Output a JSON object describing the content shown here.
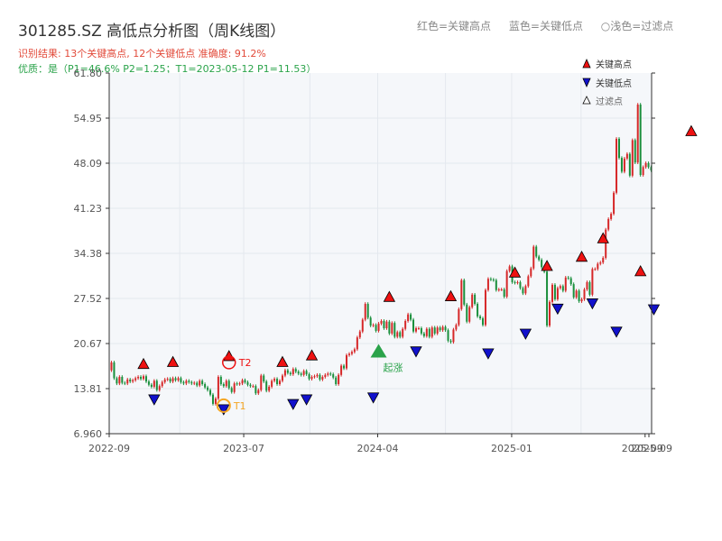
{
  "header": {
    "title": "301285.SZ 高低点分析图（周K线图）",
    "result_text": "识别结果: 13个关键高点, 12个关键低点  准确度: 91.2%",
    "quality_text": "优质：是（P1=46.6%  P2=1.25；T1=2023-05-12 P1=11.53）"
  },
  "top_legend": {
    "red": "红色=关键高点",
    "blue": "蓝色=关键低点",
    "hollow": "○浅色=过滤点"
  },
  "legend": {
    "high": "关键高点",
    "low": "关键低点",
    "filtered": "过滤点"
  },
  "colors": {
    "up": "#d62728",
    "down": "#1a8f3c",
    "high_marker": "#ee1111",
    "low_marker": "#1111cc",
    "t_circle": "#f5a623",
    "start_marker": "#2aa34a",
    "grid": "#e4e8ee",
    "plot_bg": "#f5f7fa"
  },
  "chart_data": {
    "type": "candlestick",
    "x_tick_labels": [
      "2022-09",
      "2023-07",
      "2024-04",
      "2025-01",
      "2025-09",
      "2025-09"
    ],
    "y_tick_labels": [
      "6.960",
      "13.81",
      "20.67",
      "27.52",
      "34.38",
      "41.23",
      "48.09",
      "54.95",
      "61.80"
    ],
    "ylim": [
      6.96,
      61.8
    ],
    "grid": true,
    "legend_position": "top-right",
    "closes": [
      17.8,
      15.4,
      14.6,
      15.6,
      14.7,
      14.6,
      15.2,
      14.9,
      15.1,
      15.4,
      15.6,
      15.3,
      15.7,
      14.9,
      14.4,
      14.1,
      15.0,
      13.6,
      14.2,
      14.8,
      15.2,
      15.3,
      14.9,
      15.4,
      15.1,
      15.4,
      14.8,
      14.6,
      15.0,
      14.8,
      14.6,
      14.7,
      14.3,
      15.0,
      14.5,
      14.0,
      13.6,
      12.9,
      11.5,
      12.3,
      15.6,
      14.5,
      14.2,
      15.0,
      13.9,
      13.3,
      14.6,
      14.5,
      14.6,
      15.1,
      14.8,
      14.4,
      14.2,
      14.2,
      13.1,
      13.6,
      15.8,
      14.9,
      13.5,
      14.1,
      15.0,
      15.3,
      14.5,
      15.0,
      15.8,
      16.6,
      16.2,
      16.0,
      16.8,
      16.4,
      16.1,
      15.9,
      16.5,
      16.0,
      15.3,
      15.6,
      15.7,
      15.9,
      15.2,
      15.6,
      15.9,
      16.1,
      16.0,
      15.5,
      14.5,
      15.9,
      17.3,
      16.9,
      18.9,
      19.1,
      19.4,
      19.8,
      21.6,
      22.5,
      24.3,
      26.7,
      24.6,
      23.4,
      23.5,
      22.6,
      23.7,
      24.1,
      23.0,
      24.0,
      22.2,
      23.8,
      21.7,
      22.4,
      21.7,
      22.9,
      24.1,
      25.1,
      24.3,
      22.5,
      23.0,
      23.0,
      22.2,
      21.8,
      22.9,
      21.7,
      23.1,
      22.2,
      23.1,
      22.7,
      23.2,
      22.7,
      21.1,
      20.9,
      22.8,
      23.5,
      25.9,
      30.3,
      26.6,
      24.0,
      26.2,
      28.1,
      26.7,
      24.8,
      24.5,
      23.5,
      28.8,
      30.5,
      30.4,
      30.3,
      28.8,
      28.9,
      28.9,
      27.8,
      31.7,
      32.4,
      30.0,
      29.9,
      30.0,
      29.1,
      28.3,
      29.4,
      30.9,
      32.1,
      35.4,
      33.9,
      33.4,
      32.3,
      31.6,
      23.4,
      27.0,
      29.6,
      27.4,
      29.1,
      29.4,
      28.7,
      30.7,
      30.6,
      29.7,
      27.7,
      28.7,
      27.1,
      27.4,
      28.9,
      30.0,
      28.1,
      32.0,
      32.0,
      32.8,
      33.0,
      33.7,
      38.0,
      39.6,
      40.4,
      43.6,
      51.8,
      48.9,
      46.8,
      48.8,
      49.5,
      46.2,
      51.6,
      48.2,
      57.0,
      46.3,
      47.5,
      48.1,
      47.5,
      47.0
    ],
    "key_highs": [
      {
        "index": 12,
        "value": 16.6
      },
      {
        "index": 23,
        "value": 16.9
      },
      {
        "index": 44,
        "value": 17.8
      },
      {
        "index": 64,
        "value": 16.9
      },
      {
        "index": 75,
        "value": 17.9
      },
      {
        "index": 104,
        "value": 26.8
      },
      {
        "index": 127,
        "value": 26.9
      },
      {
        "index": 151,
        "value": 30.5
      },
      {
        "index": 163,
        "value": 31.5
      },
      {
        "index": 176,
        "value": 32.9
      },
      {
        "index": 184,
        "value": 35.7
      },
      {
        "index": 198,
        "value": 30.7
      },
      {
        "index": 217,
        "value": 52.0
      }
    ],
    "key_lows": [
      {
        "index": 16,
        "value": 13.0
      },
      {
        "index": 42,
        "value": 11.5
      },
      {
        "index": 68,
        "value": 12.3
      },
      {
        "index": 73,
        "value": 13.0
      },
      {
        "index": 98,
        "value": 13.3
      },
      {
        "index": 114,
        "value": 20.3
      },
      {
        "index": 141,
        "value": 20.0
      },
      {
        "index": 155,
        "value": 23.0
      },
      {
        "index": 167,
        "value": 26.8
      },
      {
        "index": 180,
        "value": 27.6
      },
      {
        "index": 189,
        "value": 23.3
      },
      {
        "index": 203,
        "value": 26.7
      }
    ],
    "annotations": [
      {
        "label": "T2",
        "index": 44,
        "value": 17.8
      },
      {
        "label": "T1",
        "index": 42,
        "value": 11.5
      },
      {
        "label": "起涨",
        "index": 100,
        "value": 19.5
      }
    ]
  }
}
